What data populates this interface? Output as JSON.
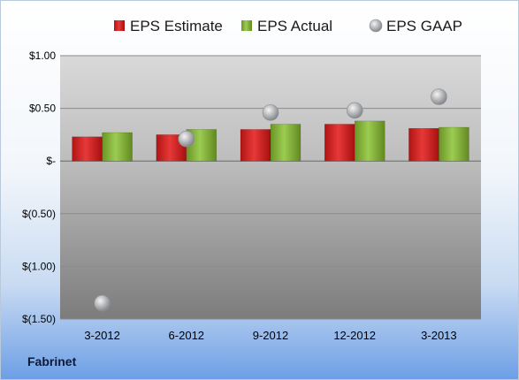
{
  "company": "Fabrinet",
  "colors": {
    "estimate": "#d42020",
    "actual": "#7fae34",
    "gaap": "#a7aaae"
  },
  "chart_data": {
    "type": "bar",
    "title": "",
    "xlabel": "",
    "ylabel": "",
    "categories": [
      "3-2012",
      "6-2012",
      "9-2012",
      "12-2012",
      "3-2013"
    ],
    "series": [
      {
        "name": "EPS Estimate",
        "kind": "bar",
        "values": [
          0.23,
          0.25,
          0.3,
          0.35,
          0.31
        ]
      },
      {
        "name": "EPS Actual",
        "kind": "bar",
        "values": [
          0.27,
          0.3,
          0.35,
          0.38,
          0.32
        ]
      },
      {
        "name": "EPS GAAP",
        "kind": "marker",
        "values": [
          -1.35,
          0.21,
          0.46,
          0.48,
          0.61
        ]
      }
    ],
    "ylim": [
      -1.5,
      1.0
    ],
    "yticks": [
      1.0,
      0.5,
      0,
      -0.5,
      -1.0,
      -1.5
    ],
    "ytick_labels": [
      "$1.00",
      "$0.50",
      "$-",
      "$(0.50)",
      "$(1.00)",
      "$(1.50)"
    ],
    "grid": true,
    "legend_position": "top"
  }
}
